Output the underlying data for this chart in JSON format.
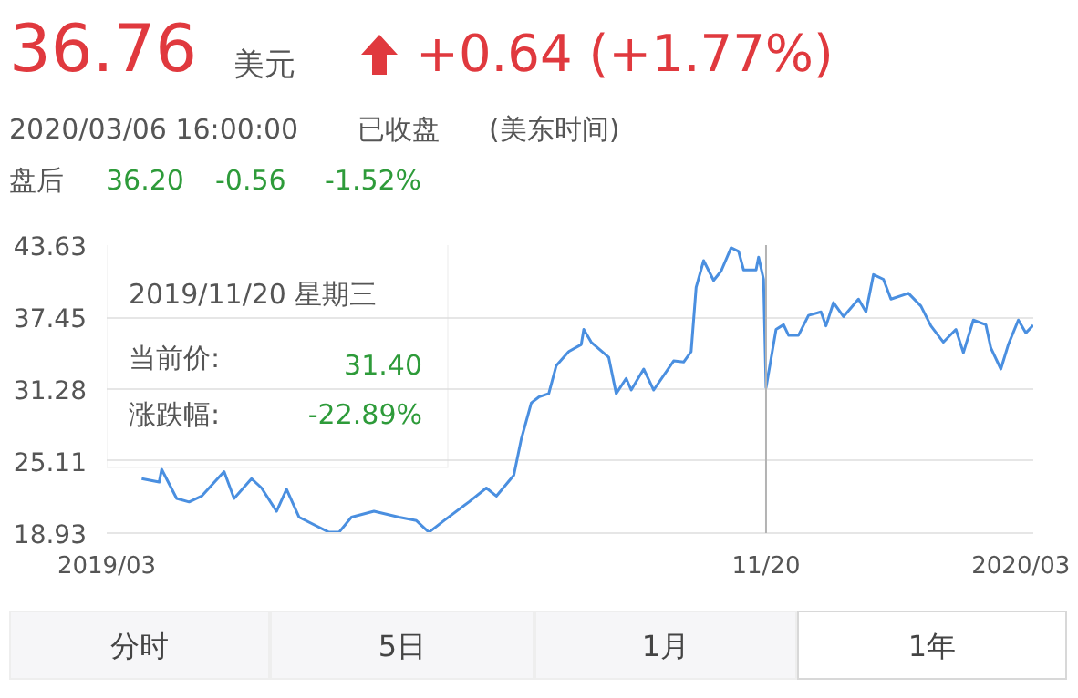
{
  "chart_data": {
    "type": "line",
    "title": "36.76",
    "annotations": [
      "美元",
      "+0.64 (+1.77%)",
      "2020/03/06 16:00:00",
      "已收盘",
      "(美东时间)",
      "盘后",
      "36.20",
      "-0.56",
      "-1.52%",
      "2019/11/20 星期三",
      "当前价:",
      "31.40",
      "涨跌幅:",
      "-22.89%",
      "分时",
      "5日",
      "1月",
      "1年"
    ],
    "x": [
      "2019-03-15",
      "2019-03-22",
      "2019-03-23",
      "2019-03-29",
      "2019-04-03",
      "2019-04-08",
      "2019-04-17",
      "2019-04-21",
      "2019-04-28",
      "2019-05-02",
      "2019-05-08",
      "2019-05-12",
      "2019-05-17",
      "2019-05-29",
      "2019-06-02",
      "2019-06-07",
      "2019-06-16",
      "2019-06-26",
      "2019-07-03",
      "2019-07-08",
      "2019-07-14",
      "2019-07-24",
      "2019-07-31",
      "2019-08-04",
      "2019-08-11",
      "2019-08-14",
      "2019-08-18",
      "2019-08-21",
      "2019-08-25",
      "2019-08-28",
      "2019-09-02",
      "2019-09-07",
      "2019-09-08",
      "2019-09-11",
      "2019-09-18",
      "2019-09-21",
      "2019-09-25",
      "2019-09-27",
      "2019-10-02",
      "2019-10-06",
      "2019-10-14",
      "2019-10-18",
      "2019-10-21",
      "2019-10-23",
      "2019-10-26",
      "2019-10-30",
      "2019-11-02",
      "2019-11-06",
      "2019-11-09",
      "2019-11-11",
      "2019-11-16",
      "2019-11-17",
      "2019-11-19",
      "2019-11-20",
      "2019-11-24",
      "2019-11-27",
      "2019-11-29",
      "2019-12-03",
      "2019-12-07",
      "2019-12-12",
      "2019-12-14",
      "2019-12-17",
      "2019-12-21",
      "2019-12-27",
      "2019-12-30",
      "2020-01-02",
      "2020-01-06",
      "2020-01-09",
      "2020-01-16",
      "2020-01-21",
      "2020-01-25",
      "2020-01-30",
      "2020-02-04",
      "2020-02-07",
      "2020-02-11",
      "2020-02-16",
      "2020-02-18",
      "2020-02-22",
      "2020-02-25",
      "2020-02-29",
      "2020-03-03",
      "2020-03-06"
    ],
    "series": [
      {
        "color": "#4a8fe0",
        "values": [
          23.6,
          23.3,
          24.4,
          21.9,
          21.6,
          22.1,
          24.2,
          21.9,
          23.6,
          22.8,
          20.8,
          22.7,
          20.3,
          19.0,
          19.0,
          20.3,
          20.8,
          20.3,
          20.0,
          19.0,
          20.0,
          21.6,
          22.8,
          22.1,
          23.9,
          27.0,
          30.1,
          30.6,
          30.9,
          33.3,
          34.5,
          35.1,
          36.4,
          35.3,
          34.0,
          30.9,
          32.2,
          31.2,
          33.0,
          31.2,
          33.7,
          33.6,
          34.5,
          40.0,
          42.3,
          40.6,
          41.4,
          43.4,
          43.1,
          41.5,
          41.5,
          42.6,
          40.7,
          31.4,
          36.4,
          36.8,
          35.9,
          35.9,
          37.6,
          37.9,
          36.7,
          38.7,
          37.5,
          39.0,
          37.9,
          41.1,
          40.7,
          39.0,
          39.5,
          38.4,
          36.7,
          35.3,
          36.4,
          34.4,
          37.2,
          36.8,
          34.8,
          33.0,
          35.1,
          37.2,
          36.1,
          36.76
        ]
      }
    ],
    "xlim": [
      "2019-03-01",
      "2020-03-06"
    ],
    "xticks": [
      {
        "value": "2019-03-01",
        "label": "2019/03"
      },
      {
        "value": "2020-03-01",
        "label": "2020/03"
      }
    ],
    "ylim": [
      18.93,
      43.63
    ],
    "yticks": [
      18.93,
      25.11,
      31.28,
      37.45,
      43.63
    ],
    "grid": "y",
    "ref_lines": [
      {
        "axis": "x",
        "value": "2019-11-20",
        "label": "11/20",
        "color": "#b3b3b3"
      }
    ]
  }
}
